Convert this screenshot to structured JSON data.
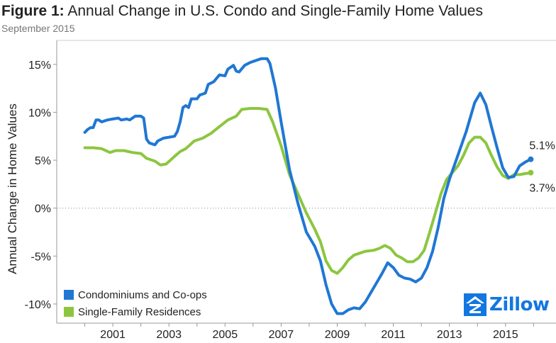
{
  "title_prefix": "Figure 1:",
  "title_text": " Annual Change in U.S. Condo and Single-Family Home Values",
  "subtitle": "September 2015",
  "logo_text": "Zillow",
  "chart_data": {
    "type": "line",
    "ylabel": "Annual Change in Home Values",
    "xlabel": "",
    "ylim": [
      -12,
      17.5
    ],
    "xlim": [
      1999.0,
      2016.8
    ],
    "y_ticks": [
      15,
      10,
      5,
      0,
      -5,
      -10
    ],
    "y_tick_labels": [
      "15%",
      "10%",
      "5%",
      "0%",
      "-5%",
      "-10%"
    ],
    "x_ticks": [
      2001,
      2003,
      2005,
      2007,
      2009,
      2011,
      2013,
      2015
    ],
    "x_tick_labels": [
      "2001",
      "2003",
      "2005",
      "2007",
      "2009",
      "2011",
      "2013",
      "2015"
    ],
    "zero_line": "dotted",
    "grid": false,
    "legend_position": "bottom-left",
    "series": [
      {
        "name": "Condominiums and Co-ops",
        "color": "#1f77d4",
        "end_label": "5.1%",
        "points": [
          [
            2000.0,
            7.9
          ],
          [
            2000.1,
            8.2
          ],
          [
            2000.2,
            8.4
          ],
          [
            2000.3,
            8.4
          ],
          [
            2000.4,
            9.2
          ],
          [
            2000.5,
            9.2
          ],
          [
            2000.6,
            9.0
          ],
          [
            2000.8,
            9.2
          ],
          [
            2001.0,
            9.3
          ],
          [
            2001.2,
            9.4
          ],
          [
            2001.3,
            9.2
          ],
          [
            2001.5,
            9.3
          ],
          [
            2001.6,
            9.2
          ],
          [
            2001.8,
            9.6
          ],
          [
            2002.0,
            9.6
          ],
          [
            2002.1,
            9.4
          ],
          [
            2002.2,
            7.2
          ],
          [
            2002.3,
            6.8
          ],
          [
            2002.5,
            6.6
          ],
          [
            2002.6,
            7.0
          ],
          [
            2002.8,
            7.3
          ],
          [
            2003.0,
            7.4
          ],
          [
            2003.2,
            7.5
          ],
          [
            2003.3,
            8.0
          ],
          [
            2003.4,
            9.0
          ],
          [
            2003.5,
            10.5
          ],
          [
            2003.6,
            10.7
          ],
          [
            2003.7,
            10.5
          ],
          [
            2003.8,
            11.4
          ],
          [
            2004.0,
            11.4
          ],
          [
            2004.1,
            11.8
          ],
          [
            2004.3,
            12.0
          ],
          [
            2004.4,
            12.9
          ],
          [
            2004.6,
            13.2
          ],
          [
            2004.8,
            13.9
          ],
          [
            2005.0,
            13.8
          ],
          [
            2005.1,
            14.5
          ],
          [
            2005.3,
            14.9
          ],
          [
            2005.4,
            14.3
          ],
          [
            2005.5,
            14.2
          ],
          [
            2005.7,
            14.9
          ],
          [
            2005.9,
            15.2
          ],
          [
            2006.1,
            15.4
          ],
          [
            2006.3,
            15.6
          ],
          [
            2006.5,
            15.6
          ],
          [
            2006.6,
            15.1
          ],
          [
            2006.8,
            12.5
          ],
          [
            2007.0,
            9.0
          ],
          [
            2007.3,
            4.0
          ],
          [
            2007.6,
            0.5
          ],
          [
            2007.9,
            -2.5
          ],
          [
            2008.2,
            -4.0
          ],
          [
            2008.4,
            -5.5
          ],
          [
            2008.6,
            -8.0
          ],
          [
            2008.8,
            -10.0
          ],
          [
            2009.0,
            -11.0
          ],
          [
            2009.2,
            -11.0
          ],
          [
            2009.4,
            -10.6
          ],
          [
            2009.6,
            -10.4
          ],
          [
            2009.8,
            -10.5
          ],
          [
            2010.0,
            -9.8
          ],
          [
            2010.2,
            -8.8
          ],
          [
            2010.4,
            -7.8
          ],
          [
            2010.6,
            -6.8
          ],
          [
            2010.8,
            -5.7
          ],
          [
            2011.0,
            -6.2
          ],
          [
            2011.2,
            -7.0
          ],
          [
            2011.4,
            -7.3
          ],
          [
            2011.6,
            -7.4
          ],
          [
            2011.8,
            -7.7
          ],
          [
            2012.0,
            -7.3
          ],
          [
            2012.2,
            -6.2
          ],
          [
            2012.4,
            -4.5
          ],
          [
            2012.6,
            -2.0
          ],
          [
            2012.8,
            1.0
          ],
          [
            2013.0,
            3.0
          ],
          [
            2013.3,
            5.5
          ],
          [
            2013.6,
            8.0
          ],
          [
            2013.9,
            11.0
          ],
          [
            2014.1,
            12.0
          ],
          [
            2014.3,
            10.8
          ],
          [
            2014.5,
            8.5
          ],
          [
            2014.7,
            6.3
          ],
          [
            2014.9,
            4.2
          ],
          [
            2015.1,
            3.2
          ],
          [
            2015.3,
            3.3
          ],
          [
            2015.5,
            4.4
          ],
          [
            2015.7,
            4.8
          ],
          [
            2015.9,
            5.1
          ]
        ]
      },
      {
        "name": "Single-Family Residences",
        "color": "#8cc63f",
        "end_label": "3.7%",
        "points": [
          [
            2000.0,
            6.3
          ],
          [
            2000.3,
            6.3
          ],
          [
            2000.6,
            6.2
          ],
          [
            2000.9,
            5.8
          ],
          [
            2001.1,
            6.0
          ],
          [
            2001.4,
            6.0
          ],
          [
            2001.7,
            5.8
          ],
          [
            2002.0,
            5.7
          ],
          [
            2002.2,
            5.2
          ],
          [
            2002.5,
            4.9
          ],
          [
            2002.7,
            4.5
          ],
          [
            2002.9,
            4.6
          ],
          [
            2003.2,
            5.4
          ],
          [
            2003.4,
            5.9
          ],
          [
            2003.6,
            6.2
          ],
          [
            2003.9,
            7.0
          ],
          [
            2004.2,
            7.3
          ],
          [
            2004.5,
            7.8
          ],
          [
            2004.8,
            8.5
          ],
          [
            2005.1,
            9.2
          ],
          [
            2005.4,
            9.6
          ],
          [
            2005.6,
            10.3
          ],
          [
            2005.9,
            10.4
          ],
          [
            2006.2,
            10.4
          ],
          [
            2006.5,
            10.3
          ],
          [
            2006.7,
            9.0
          ],
          [
            2007.0,
            6.5
          ],
          [
            2007.3,
            3.5
          ],
          [
            2007.6,
            1.5
          ],
          [
            2007.9,
            -0.5
          ],
          [
            2008.2,
            -2.2
          ],
          [
            2008.4,
            -3.5
          ],
          [
            2008.6,
            -5.5
          ],
          [
            2008.8,
            -6.5
          ],
          [
            2009.0,
            -6.8
          ],
          [
            2009.2,
            -6.2
          ],
          [
            2009.4,
            -5.4
          ],
          [
            2009.6,
            -4.9
          ],
          [
            2009.8,
            -4.7
          ],
          [
            2010.0,
            -4.5
          ],
          [
            2010.3,
            -4.4
          ],
          [
            2010.5,
            -4.2
          ],
          [
            2010.7,
            -3.9
          ],
          [
            2010.9,
            -4.2
          ],
          [
            2011.1,
            -4.9
          ],
          [
            2011.3,
            -5.2
          ],
          [
            2011.5,
            -5.6
          ],
          [
            2011.7,
            -5.6
          ],
          [
            2011.9,
            -5.2
          ],
          [
            2012.1,
            -4.4
          ],
          [
            2012.3,
            -2.5
          ],
          [
            2012.5,
            -0.5
          ],
          [
            2012.7,
            1.5
          ],
          [
            2012.9,
            3.0
          ],
          [
            2013.1,
            3.7
          ],
          [
            2013.3,
            4.4
          ],
          [
            2013.5,
            5.5
          ],
          [
            2013.7,
            6.8
          ],
          [
            2013.9,
            7.4
          ],
          [
            2014.1,
            7.4
          ],
          [
            2014.3,
            6.8
          ],
          [
            2014.5,
            5.5
          ],
          [
            2014.7,
            4.3
          ],
          [
            2014.9,
            3.4
          ],
          [
            2015.1,
            3.1
          ],
          [
            2015.3,
            3.5
          ],
          [
            2015.5,
            3.5
          ],
          [
            2015.7,
            3.6
          ],
          [
            2015.9,
            3.7
          ]
        ]
      }
    ]
  }
}
